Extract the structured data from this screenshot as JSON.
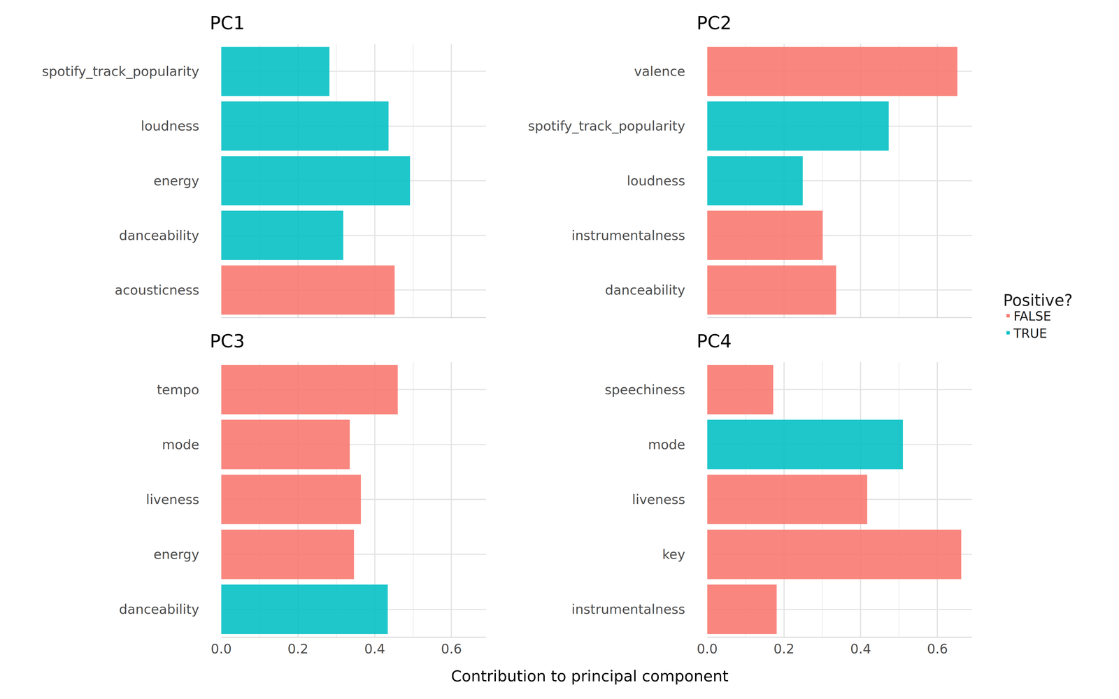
{
  "chart_data": {
    "type": "bar",
    "orientation": "horizontal",
    "x_label": "Contribution to principal component",
    "legend_title": "Positive?",
    "legend": "right",
    "grid": true,
    "xlim": [
      0,
      0.69
    ],
    "xticks": [
      {
        "value": 0,
        "label": "0.0"
      },
      0.2,
      0.4,
      0.6
    ],
    "panels": [
      {
        "title": "PC1",
        "categories": [
          "spotify_track_popularity",
          "loudness",
          "energy",
          "danceability",
          "acousticness"
        ],
        "series": [
          {
            "name": "FALSE",
            "color": "#F8766D",
            "values": [
              null,
              null,
              null,
              null,
              0.452
            ]
          },
          {
            "name": "TRUE",
            "color": "#00BFC4",
            "values": [
              0.282,
              0.436,
              0.492,
              0.318,
              null
            ]
          }
        ]
      },
      {
        "title": "PC2",
        "categories": [
          "valence",
          "spotify_track_popularity",
          "loudness",
          "instrumentalness",
          "danceability"
        ],
        "series": [
          {
            "name": "FALSE",
            "color": "#F8766D",
            "values": [
              0.652,
              null,
              null,
              0.301,
              0.336
            ]
          },
          {
            "name": "TRUE",
            "color": "#00BFC4",
            "values": [
              null,
              0.473,
              0.249,
              null,
              null
            ]
          }
        ]
      },
      {
        "title": "PC3",
        "categories": [
          "tempo",
          "mode",
          "liveness",
          "energy",
          "danceability"
        ],
        "series": [
          {
            "name": "FALSE",
            "color": "#F8766D",
            "values": [
              0.46,
              0.335,
              0.364,
              0.346,
              null
            ]
          },
          {
            "name": "TRUE",
            "color": "#00BFC4",
            "values": [
              null,
              null,
              null,
              null,
              0.434
            ]
          }
        ]
      },
      {
        "title": "PC4",
        "categories": [
          "speechiness",
          "mode",
          "liveness",
          "key",
          "instrumentalness"
        ],
        "series": [
          {
            "name": "FALSE",
            "color": "#F8766D",
            "values": [
              0.172,
              null,
              0.417,
              0.662,
              0.181
            ]
          },
          {
            "name": "TRUE",
            "color": "#00BFC4",
            "values": [
              null,
              0.51,
              null,
              null,
              null
            ]
          }
        ]
      }
    ]
  }
}
